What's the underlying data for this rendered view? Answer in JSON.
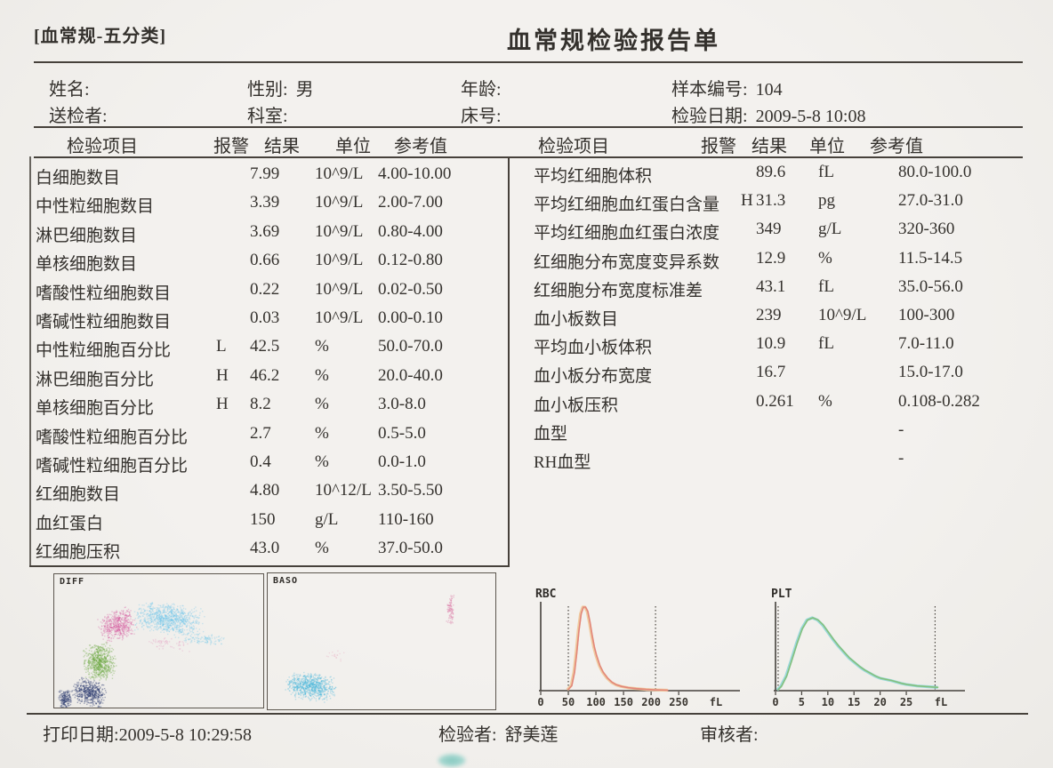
{
  "page": {
    "tag": "[血常规-五分类]",
    "title": "血常规检验报告单"
  },
  "patient": {
    "name_label": "姓名:",
    "name_value": "",
    "sex_label": "性别:",
    "sex_value": "男",
    "age_label": "年龄:",
    "age_value": "",
    "sample_label": "样本编号:",
    "sample_value": "104",
    "sender_label": "送检者:",
    "sender_value": "",
    "dept_label": "科室:",
    "dept_value": "",
    "bed_label": "床号:",
    "bed_value": "",
    "date_label": "检验日期:",
    "date_value": "2009-5-8 10:08"
  },
  "table_headers": {
    "item": "检验项目",
    "alarm": "报警",
    "result": "结果",
    "unit": "单位",
    "ref": "参考值"
  },
  "left_table": {
    "rows": [
      {
        "item": "白细胞数目",
        "alarm": "",
        "result": "7.99",
        "unit": "10^9/L",
        "ref": "4.00-10.00"
      },
      {
        "item": "中性粒细胞数目",
        "alarm": "",
        "result": "3.39",
        "unit": "10^9/L",
        "ref": "2.00-7.00"
      },
      {
        "item": "淋巴细胞数目",
        "alarm": "",
        "result": "3.69",
        "unit": "10^9/L",
        "ref": "0.80-4.00"
      },
      {
        "item": "单核细胞数目",
        "alarm": "",
        "result": "0.66",
        "unit": "10^9/L",
        "ref": "0.12-0.80"
      },
      {
        "item": "嗜酸性粒细胞数目",
        "alarm": "",
        "result": "0.22",
        "unit": "10^9/L",
        "ref": "0.02-0.50"
      },
      {
        "item": "嗜碱性粒细胞数目",
        "alarm": "",
        "result": "0.03",
        "unit": "10^9/L",
        "ref": "0.00-0.10"
      },
      {
        "item": "中性粒细胞百分比",
        "alarm": "L",
        "result": "42.5",
        "unit": "%",
        "ref": "50.0-70.0"
      },
      {
        "item": "淋巴细胞百分比",
        "alarm": "H",
        "result": "46.2",
        "unit": "%",
        "ref": "20.0-40.0"
      },
      {
        "item": "单核细胞百分比",
        "alarm": "H",
        "result": "8.2",
        "unit": "%",
        "ref": "3.0-8.0"
      },
      {
        "item": "嗜酸性粒细胞百分比",
        "alarm": "",
        "result": "2.7",
        "unit": "%",
        "ref": "0.5-5.0"
      },
      {
        "item": "嗜碱性粒细胞百分比",
        "alarm": "",
        "result": "0.4",
        "unit": "%",
        "ref": "0.0-1.0"
      },
      {
        "item": "红细胞数目",
        "alarm": "",
        "result": "4.80",
        "unit": "10^12/L",
        "ref": "3.50-5.50"
      },
      {
        "item": "血红蛋白",
        "alarm": "",
        "result": "150",
        "unit": "g/L",
        "ref": "110-160"
      },
      {
        "item": "红细胞压积",
        "alarm": "",
        "result": "43.0",
        "unit": "%",
        "ref": "37.0-50.0"
      }
    ]
  },
  "right_table": {
    "rows": [
      {
        "item": "平均红细胞体积",
        "alarm": "",
        "result": "89.6",
        "unit": "fL",
        "ref": "80.0-100.0"
      },
      {
        "item": "平均红细胞血红蛋白含量",
        "alarm": "H",
        "result": "31.3",
        "unit": "pg",
        "ref": "27.0-31.0"
      },
      {
        "item": "平均红细胞血红蛋白浓度",
        "alarm": "",
        "result": "349",
        "unit": "g/L",
        "ref": "320-360"
      },
      {
        "item": "红细胞分布宽度变异系数",
        "alarm": "",
        "result": "12.9",
        "unit": "%",
        "ref": "11.5-14.5"
      },
      {
        "item": "红细胞分布宽度标准差",
        "alarm": "",
        "result": "43.1",
        "unit": "fL",
        "ref": "35.0-56.0"
      },
      {
        "item": "血小板数目",
        "alarm": "",
        "result": "239",
        "unit": "10^9/L",
        "ref": "100-300"
      },
      {
        "item": "平均血小板体积",
        "alarm": "",
        "result": "10.9",
        "unit": "fL",
        "ref": "7.0-11.0"
      },
      {
        "item": "血小板分布宽度",
        "alarm": "",
        "result": "16.7",
        "unit": "",
        "ref": "15.0-17.0"
      },
      {
        "item": "血小板压积",
        "alarm": "",
        "result": "0.261",
        "unit": "%",
        "ref": "0.108-0.282"
      },
      {
        "item": "血型",
        "alarm": "",
        "result": "",
        "unit": "",
        "ref": "-"
      },
      {
        "item": "RH血型",
        "alarm": "",
        "result": "",
        "unit": "",
        "ref": "-"
      }
    ]
  },
  "footer": {
    "print_label": "打印日期:",
    "print_value": "2009-5-8 10:29:58",
    "tester_label": "检验者:",
    "tester_value": "舒美莲",
    "reviewer_label": "审核者:",
    "reviewer_value": ""
  },
  "chart_data": [
    {
      "type": "scatter",
      "title": "DIFF",
      "clusters": [
        {
          "name": "navy-cluster-main",
          "color": "#2a3a6e",
          "a": 0.4,
          "cx": 0.165,
          "cy": 0.885,
          "rx": 0.085,
          "ry": 0.1,
          "rot": 0.3,
          "n": 520
        },
        {
          "name": "navy-cluster-left",
          "color": "#2a3a6e",
          "a": 0.4,
          "cx": 0.05,
          "cy": 0.93,
          "rx": 0.035,
          "ry": 0.07,
          "rot": 0,
          "n": 190
        },
        {
          "name": "green-cluster",
          "color": "#5fa232",
          "a": 0.33,
          "cx": 0.215,
          "cy": 0.655,
          "rx": 0.08,
          "ry": 0.145,
          "rot": -0.12,
          "n": 680
        },
        {
          "name": "magenta-cluster",
          "color": "#d14a96",
          "a": 0.3,
          "cx": 0.3,
          "cy": 0.38,
          "rx": 0.095,
          "ry": 0.115,
          "rot": -0.45,
          "n": 540
        },
        {
          "name": "cyan-cluster-main",
          "color": "#58c0e8",
          "a": 0.28,
          "cx": 0.545,
          "cy": 0.33,
          "rx": 0.175,
          "ry": 0.12,
          "rot": 0.12,
          "n": 950
        },
        {
          "name": "cyan-cluster-tail",
          "color": "#58c0e8",
          "a": 0.25,
          "cx": 0.7,
          "cy": 0.48,
          "rx": 0.13,
          "ry": 0.05,
          "rot": 0.1,
          "n": 130
        },
        {
          "name": "pink-sparse",
          "color": "#e090b8",
          "a": 0.3,
          "cx": 0.55,
          "cy": 0.52,
          "rx": 0.11,
          "ry": 0.05,
          "rot": 0.1,
          "n": 60
        }
      ]
    },
    {
      "type": "scatter",
      "title": "BASO",
      "clusters": [
        {
          "name": "cyan-cluster",
          "color": "#45b4da",
          "a": 0.32,
          "cx": 0.185,
          "cy": 0.83,
          "rx": 0.115,
          "ry": 0.105,
          "rot": 0.1,
          "n": 850
        },
        {
          "name": "pink-streak",
          "color": "#d8679c",
          "a": 0.35,
          "cx": 0.8,
          "cy": 0.26,
          "rx": 0.018,
          "ry": 0.145,
          "rot": 0.05,
          "n": 90
        },
        {
          "name": "pink-dots",
          "color": "#e8a8c0",
          "a": 0.35,
          "cx": 0.3,
          "cy": 0.6,
          "rx": 0.05,
          "ry": 0.045,
          "rot": 0,
          "n": 18
        }
      ]
    },
    {
      "type": "line",
      "title": "RBC",
      "xlabel": "fL",
      "xticks": [
        0,
        50,
        100,
        150,
        200,
        250
      ],
      "xmax": 340,
      "gates": [
        50,
        208
      ],
      "curve_colors": [
        "#f0cba0",
        "#e2867a"
      ],
      "points": [
        [
          48,
          0.01
        ],
        [
          55,
          0.06
        ],
        [
          60,
          0.22
        ],
        [
          64,
          0.45
        ],
        [
          68,
          0.72
        ],
        [
          72,
          0.92
        ],
        [
          76,
          1.0
        ],
        [
          80,
          1.0
        ],
        [
          84,
          0.95
        ],
        [
          88,
          0.82
        ],
        [
          92,
          0.66
        ],
        [
          96,
          0.52
        ],
        [
          100,
          0.42
        ],
        [
          106,
          0.3
        ],
        [
          112,
          0.22
        ],
        [
          120,
          0.15
        ],
        [
          128,
          0.1
        ],
        [
          136,
          0.07
        ],
        [
          146,
          0.05
        ],
        [
          158,
          0.035
        ],
        [
          172,
          0.025
        ],
        [
          190,
          0.015
        ],
        [
          205,
          0.01
        ],
        [
          215,
          0.008
        ],
        [
          230,
          0.005
        ]
      ]
    },
    {
      "type": "line",
      "title": "PLT",
      "xlabel": "fL",
      "xticks": [
        0,
        5,
        10,
        15,
        20,
        25
      ],
      "xmax": 34,
      "gates": [
        0.5,
        30.5
      ],
      "curve_colors": [
        "#9ad8da",
        "#84c07c"
      ],
      "points": [
        [
          0.3,
          0.01
        ],
        [
          1,
          0.06
        ],
        [
          2,
          0.2
        ],
        [
          3,
          0.42
        ],
        [
          4,
          0.65
        ],
        [
          5,
          0.85
        ],
        [
          6,
          0.97
        ],
        [
          7,
          1.0
        ],
        [
          8,
          0.97
        ],
        [
          9,
          0.9
        ],
        [
          10,
          0.8
        ],
        [
          11,
          0.7
        ],
        [
          12,
          0.61
        ],
        [
          13,
          0.53
        ],
        [
          14,
          0.45
        ],
        [
          15,
          0.39
        ],
        [
          16,
          0.33
        ],
        [
          17,
          0.28
        ],
        [
          18,
          0.24
        ],
        [
          19,
          0.2
        ],
        [
          20,
          0.17
        ],
        [
          21,
          0.155
        ],
        [
          22,
          0.14
        ],
        [
          23,
          0.12
        ],
        [
          24,
          0.1
        ],
        [
          25,
          0.085
        ],
        [
          26,
          0.075
        ],
        [
          27,
          0.065
        ],
        [
          28,
          0.06
        ],
        [
          29,
          0.055
        ],
        [
          30,
          0.05
        ],
        [
          31,
          0.045
        ]
      ]
    }
  ]
}
